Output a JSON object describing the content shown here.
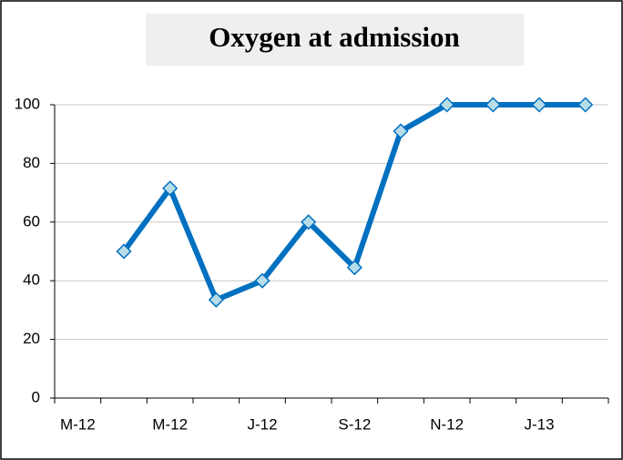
{
  "chart_data": {
    "type": "line",
    "title": "Oxygen at admission",
    "categories": [
      "M-12",
      null,
      "M-12",
      null,
      "J-12",
      null,
      "S-12",
      null,
      "N-12",
      null,
      "J-13",
      null
    ],
    "series": [
      {
        "name": "Oxygen at admission",
        "color": "#0070c0",
        "marker_color": "#b7dde8",
        "values": [
          null,
          50,
          71.5,
          33.5,
          40,
          60,
          44.5,
          91,
          100,
          100,
          100,
          100
        ]
      }
    ],
    "ylim": [
      0,
      100
    ],
    "yticks": [
      0,
      20,
      40,
      60,
      80,
      100
    ],
    "grid": true
  }
}
